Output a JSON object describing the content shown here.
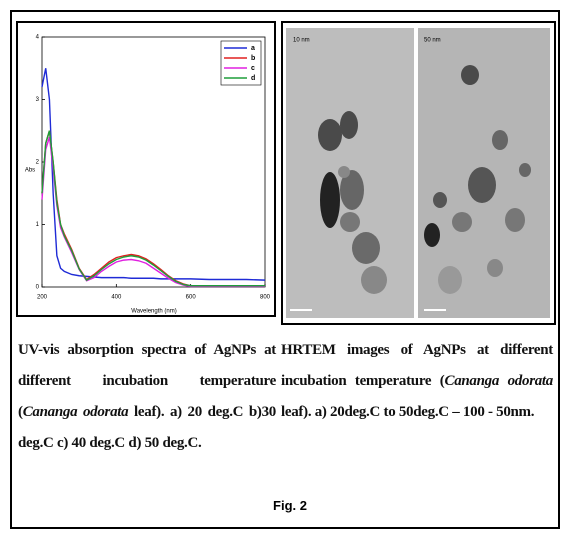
{
  "chart_data": {
    "type": "line",
    "x_label": "Wavelength (nm)",
    "y_label": "Abs",
    "x": [
      200,
      210,
      220,
      230,
      240,
      250,
      260,
      280,
      300,
      320,
      340,
      360,
      380,
      400,
      420,
      440,
      460,
      480,
      500,
      520,
      540,
      560,
      580,
      600,
      650,
      700,
      750,
      800
    ],
    "series": [
      {
        "name": "a",
        "color": "#1f2bd6",
        "values": [
          3.2,
          3.5,
          3.0,
          1.5,
          0.5,
          0.3,
          0.25,
          0.2,
          0.18,
          0.17,
          0.16,
          0.15,
          0.15,
          0.15,
          0.15,
          0.14,
          0.14,
          0.14,
          0.14,
          0.13,
          0.13,
          0.13,
          0.13,
          0.13,
          0.12,
          0.12,
          0.12,
          0.11
        ]
      },
      {
        "name": "b",
        "color": "#e02020",
        "values": [
          1.5,
          2.3,
          2.5,
          2.0,
          1.4,
          1.0,
          0.85,
          0.6,
          0.3,
          0.12,
          0.2,
          0.3,
          0.4,
          0.47,
          0.5,
          0.52,
          0.5,
          0.45,
          0.37,
          0.28,
          0.18,
          0.1,
          0.05,
          0.02,
          0.02,
          0.02,
          0.02,
          0.02
        ]
      },
      {
        "name": "c",
        "color": "#e020e0",
        "values": [
          1.4,
          2.2,
          2.4,
          1.9,
          1.3,
          0.95,
          0.8,
          0.55,
          0.28,
          0.1,
          0.15,
          0.25,
          0.33,
          0.4,
          0.43,
          0.44,
          0.42,
          0.38,
          0.3,
          0.22,
          0.14,
          0.07,
          0.03,
          0.01,
          0.01,
          0.01,
          0.01,
          0.01
        ]
      },
      {
        "name": "d",
        "color": "#1e9e3a",
        "values": [
          1.5,
          2.3,
          2.5,
          2.0,
          1.35,
          1.0,
          0.82,
          0.58,
          0.29,
          0.11,
          0.18,
          0.28,
          0.37,
          0.44,
          0.48,
          0.5,
          0.48,
          0.43,
          0.35,
          0.26,
          0.17,
          0.09,
          0.04,
          0.02,
          0.02,
          0.02,
          0.02,
          0.02
        ]
      }
    ],
    "xlim": [
      200,
      800
    ],
    "xticks": [
      200,
      400,
      600,
      800
    ],
    "ylim": [
      0,
      4
    ],
    "yticks": [
      0,
      1,
      2,
      3,
      4
    ],
    "legend": "top-right"
  },
  "micrographs": {
    "scale_labels": [
      "10 nm",
      "50 nm"
    ]
  },
  "captions": {
    "left": [
      "UV-vis absorption spectra of AgNPs at different incubation temperature (",
      "Cananga odorata",
      " leaf). a) 20 deg.C b)30 deg.C c) 40 deg.C d) 50 deg.C."
    ],
    "right": [
      "HRTEM images of AgNPs at different incubation temperature (",
      "Cananga odorata",
      " leaf). a) 20deg.C to 50deg.C – 100 - 50nm."
    ]
  },
  "figure_label": "Fig. 2"
}
